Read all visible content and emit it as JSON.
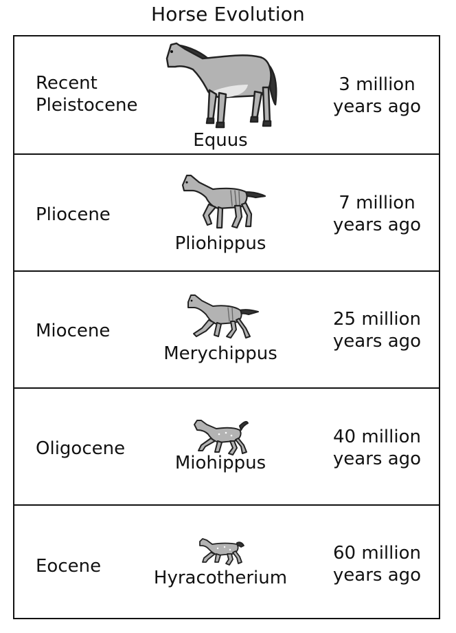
{
  "title": "Horse Evolution",
  "rows": [
    {
      "epoch_lines": [
        "Recent",
        "Pleistocene"
      ],
      "genus": "Equus",
      "age_lines": [
        "3 million",
        "years ago"
      ]
    },
    {
      "epoch_lines": [
        "Pliocene"
      ],
      "genus": "Pliohippus",
      "age_lines": [
        "7 million",
        "years ago"
      ]
    },
    {
      "epoch_lines": [
        "Miocene"
      ],
      "genus": "Merychippus",
      "age_lines": [
        "25 million",
        "years ago"
      ]
    },
    {
      "epoch_lines": [
        "Oligocene"
      ],
      "genus": "Miohippus",
      "age_lines": [
        "40 million",
        "years ago"
      ]
    },
    {
      "epoch_lines": [
        "Eocene"
      ],
      "genus": "Hyracotherium",
      "age_lines": [
        "60 million",
        "years ago"
      ]
    }
  ],
  "icons": [
    "equus-horse-icon",
    "pliohippus-horse-icon",
    "merychippus-horse-icon",
    "miohippus-horse-icon",
    "hyracotherium-horse-icon"
  ],
  "colors": {
    "line": "#111111",
    "horse_fill": "#b3b3b3",
    "horse_dark": "#333333"
  }
}
